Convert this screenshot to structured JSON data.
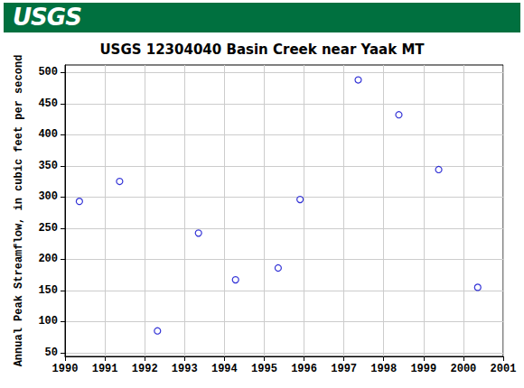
{
  "header": {
    "text": "USGS"
  },
  "chart_data": {
    "type": "scatter",
    "title": "USGS 12304040 Basin Creek near Yaak MT",
    "y_label": "Annual Peak Streamflow, in cubic feet per second",
    "x": [
      1990.36,
      1991.37,
      1992.32,
      1993.35,
      1994.28,
      1995.35,
      1995.9,
      1997.36,
      1998.38,
      1999.38,
      2000.36
    ],
    "values": [
      293,
      325,
      85,
      242,
      167,
      186,
      296,
      488,
      432,
      344,
      155
    ],
    "color": "#0000cc",
    "marker": "hollow_circle",
    "xlim": [
      1990,
      2001
    ],
    "xticks": [
      1990,
      1991,
      1992,
      1993,
      1994,
      1995,
      1996,
      1997,
      1998,
      1999,
      2000,
      2001
    ],
    "ylim": [
      44,
      512
    ],
    "yticks": [
      50,
      100,
      150,
      200,
      250,
      300,
      350,
      400,
      450,
      500
    ],
    "grid": true
  }
}
